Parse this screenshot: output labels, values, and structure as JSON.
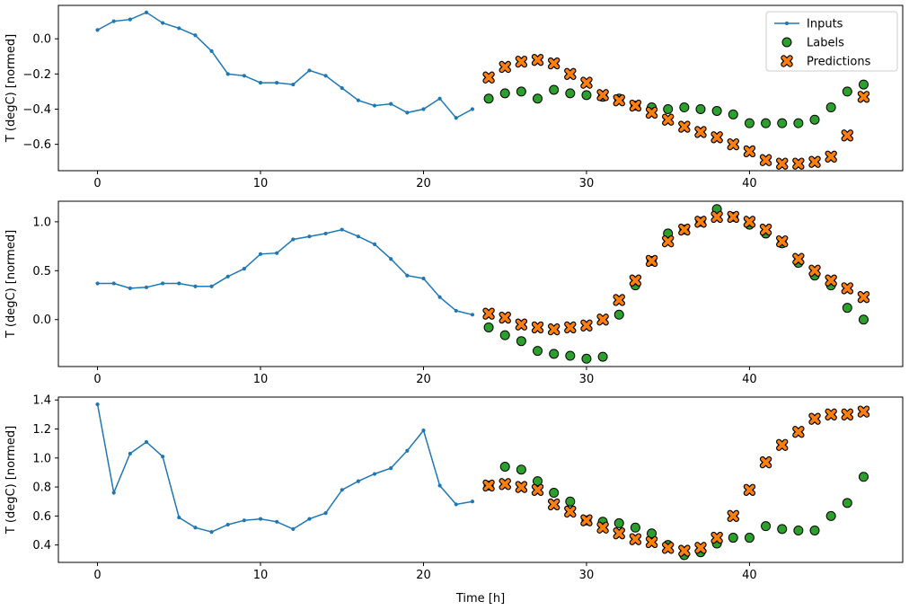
{
  "figure": {
    "background": "#ffffff"
  },
  "chart_data": [
    {
      "type": "line",
      "title": "",
      "xlabel": "",
      "ylabel": "T (degC) [normed]",
      "xlim": [
        -2.4,
        49.4
      ],
      "ylim": [
        -0.75,
        0.19
      ],
      "xticks": [
        0,
        10,
        20,
        30,
        40
      ],
      "xtick_labels": [
        "0",
        "10",
        "20",
        "30",
        "40"
      ],
      "yticks": [
        0.0,
        -0.2,
        -0.4,
        -0.6
      ],
      "ytick_labels": [
        "0.0",
        "−0.2",
        "−0.4",
        "−0.6"
      ],
      "legend": {
        "show": true,
        "position": "upper right"
      },
      "series": [
        {
          "name": "Inputs",
          "marker": "line",
          "color": "#1f77b4",
          "x": [
            0,
            1,
            2,
            3,
            4,
            5,
            6,
            7,
            8,
            9,
            10,
            11,
            12,
            13,
            14,
            15,
            16,
            17,
            18,
            19,
            20,
            21,
            22,
            23
          ],
          "y": [
            0.05,
            0.1,
            0.11,
            0.15,
            0.09,
            0.06,
            0.02,
            -0.07,
            -0.2,
            -0.21,
            -0.25,
            -0.25,
            -0.26,
            -0.18,
            -0.21,
            -0.28,
            -0.35,
            -0.38,
            -0.37,
            -0.42,
            -0.4,
            -0.34,
            -0.45,
            -0.4
          ]
        },
        {
          "name": "Labels",
          "marker": "circle",
          "color": "#2ca02c",
          "edge": "#000000",
          "x": [
            24,
            25,
            26,
            27,
            28,
            29,
            30,
            31,
            32,
            33,
            34,
            35,
            36,
            37,
            38,
            39,
            40,
            41,
            42,
            43,
            44,
            45,
            46,
            47
          ],
          "y": [
            -0.34,
            -0.31,
            -0.3,
            -0.34,
            -0.29,
            -0.31,
            -0.32,
            -0.33,
            -0.34,
            -0.38,
            -0.39,
            -0.4,
            -0.39,
            -0.4,
            -0.41,
            -0.43,
            -0.48,
            -0.48,
            -0.48,
            -0.48,
            -0.46,
            -0.39,
            -0.3,
            -0.26
          ]
        },
        {
          "name": "Predictions",
          "marker": "x",
          "color": "#ff7f0e",
          "edge": "#000000",
          "x": [
            24,
            25,
            26,
            27,
            28,
            29,
            30,
            31,
            32,
            33,
            34,
            35,
            36,
            37,
            38,
            39,
            40,
            41,
            42,
            43,
            44,
            45,
            46,
            47
          ],
          "y": [
            -0.22,
            -0.16,
            -0.13,
            -0.12,
            -0.14,
            -0.2,
            -0.25,
            -0.32,
            -0.35,
            -0.38,
            -0.42,
            -0.46,
            -0.5,
            -0.53,
            -0.56,
            -0.6,
            -0.64,
            -0.69,
            -0.71,
            -0.71,
            -0.7,
            -0.67,
            -0.55,
            -0.33
          ]
        }
      ]
    },
    {
      "type": "line",
      "title": "",
      "xlabel": "",
      "ylabel": "T (degC) [normed]",
      "xlim": [
        -2.4,
        49.4
      ],
      "ylim": [
        -0.48,
        1.21
      ],
      "xticks": [
        0,
        10,
        20,
        30,
        40
      ],
      "xtick_labels": [
        "0",
        "10",
        "20",
        "30",
        "40"
      ],
      "yticks": [
        0.0,
        0.5,
        1.0
      ],
      "ytick_labels": [
        "0.0",
        "0.5",
        "1.0"
      ],
      "legend": {
        "show": false,
        "position": ""
      },
      "series": [
        {
          "name": "Inputs",
          "marker": "line",
          "color": "#1f77b4",
          "x": [
            0,
            1,
            2,
            3,
            4,
            5,
            6,
            7,
            8,
            9,
            10,
            11,
            12,
            13,
            14,
            15,
            16,
            17,
            18,
            19,
            20,
            21,
            22,
            23
          ],
          "y": [
            0.37,
            0.37,
            0.32,
            0.33,
            0.37,
            0.37,
            0.34,
            0.34,
            0.44,
            0.52,
            0.67,
            0.68,
            0.82,
            0.85,
            0.88,
            0.92,
            0.85,
            0.77,
            0.62,
            0.45,
            0.42,
            0.23,
            0.09,
            0.05
          ]
        },
        {
          "name": "Labels",
          "marker": "circle",
          "color": "#2ca02c",
          "edge": "#000000",
          "x": [
            24,
            25,
            26,
            27,
            28,
            29,
            30,
            31,
            32,
            33,
            34,
            35,
            36,
            37,
            38,
            39,
            40,
            41,
            42,
            43,
            44,
            45,
            46,
            47
          ],
          "y": [
            -0.08,
            -0.16,
            -0.22,
            -0.32,
            -0.35,
            -0.37,
            -0.4,
            -0.38,
            0.05,
            0.35,
            0.6,
            0.88,
            0.92,
            1.0,
            1.13,
            1.05,
            0.97,
            0.88,
            0.78,
            0.58,
            0.45,
            0.35,
            0.12,
            0.0
          ]
        },
        {
          "name": "Predictions",
          "marker": "x",
          "color": "#ff7f0e",
          "edge": "#000000",
          "x": [
            24,
            25,
            26,
            27,
            28,
            29,
            30,
            31,
            32,
            33,
            34,
            35,
            36,
            37,
            38,
            39,
            40,
            41,
            42,
            43,
            44,
            45,
            46,
            47
          ],
          "y": [
            0.06,
            0.02,
            -0.05,
            -0.08,
            -0.1,
            -0.08,
            -0.06,
            0.0,
            0.2,
            0.4,
            0.6,
            0.8,
            0.92,
            1.0,
            1.05,
            1.05,
            1.0,
            0.92,
            0.8,
            0.62,
            0.5,
            0.4,
            0.32,
            0.23
          ]
        }
      ]
    },
    {
      "type": "line",
      "title": "",
      "xlabel": "Time [h]",
      "ylabel": "T (degC) [normed]",
      "xlim": [
        -2.4,
        49.4
      ],
      "ylim": [
        0.28,
        1.42
      ],
      "xticks": [
        0,
        10,
        20,
        30,
        40
      ],
      "xtick_labels": [
        "0",
        "10",
        "20",
        "30",
        "40"
      ],
      "yticks": [
        0.4,
        0.6,
        0.8,
        1.0,
        1.2,
        1.4
      ],
      "ytick_labels": [
        "0.4",
        "0.6",
        "0.8",
        "1.0",
        "1.2",
        "1.4"
      ],
      "legend": {
        "show": false,
        "position": ""
      },
      "series": [
        {
          "name": "Inputs",
          "marker": "line",
          "color": "#1f77b4",
          "x": [
            0,
            1,
            2,
            3,
            4,
            5,
            6,
            7,
            8,
            9,
            10,
            11,
            12,
            13,
            14,
            15,
            16,
            17,
            18,
            19,
            20,
            21,
            22,
            23
          ],
          "y": [
            1.37,
            0.76,
            1.03,
            1.11,
            1.01,
            0.59,
            0.52,
            0.49,
            0.54,
            0.57,
            0.58,
            0.56,
            0.51,
            0.58,
            0.62,
            0.78,
            0.84,
            0.89,
            0.93,
            1.05,
            1.19,
            0.81,
            0.68,
            0.7
          ]
        },
        {
          "name": "Labels",
          "marker": "circle",
          "color": "#2ca02c",
          "edge": "#000000",
          "x": [
            24,
            25,
            26,
            27,
            28,
            29,
            30,
            31,
            32,
            33,
            34,
            35,
            36,
            37,
            38,
            39,
            40,
            41,
            42,
            43,
            44,
            45,
            46,
            47
          ],
          "y": [
            0.81,
            0.94,
            0.92,
            0.84,
            0.76,
            0.7,
            0.57,
            0.56,
            0.55,
            0.52,
            0.48,
            0.4,
            0.33,
            0.35,
            0.41,
            0.45,
            0.45,
            0.53,
            0.51,
            0.5,
            0.5,
            0.6,
            0.69,
            0.87
          ]
        },
        {
          "name": "Predictions",
          "marker": "x",
          "color": "#ff7f0e",
          "edge": "#000000",
          "x": [
            24,
            25,
            26,
            27,
            28,
            29,
            30,
            31,
            32,
            33,
            34,
            35,
            36,
            37,
            38,
            39,
            40,
            41,
            42,
            43,
            44,
            45,
            46,
            47
          ],
          "y": [
            0.81,
            0.82,
            0.8,
            0.78,
            0.68,
            0.63,
            0.57,
            0.52,
            0.48,
            0.44,
            0.42,
            0.38,
            0.36,
            0.38,
            0.45,
            0.6,
            0.78,
            0.97,
            1.09,
            1.18,
            1.27,
            1.3,
            1.3,
            1.32
          ]
        }
      ]
    }
  ],
  "legend_labels": [
    "Inputs",
    "Labels",
    "Predictions"
  ]
}
